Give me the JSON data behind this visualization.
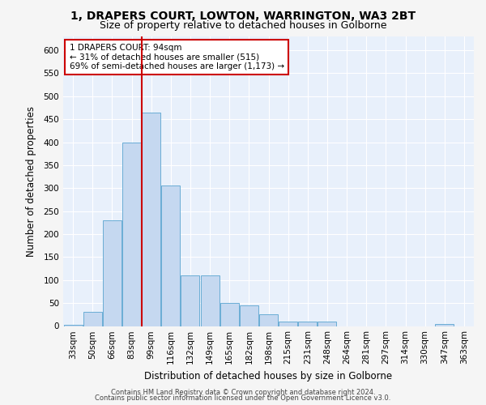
{
  "title_line1": "1, DRAPERS COURT, LOWTON, WARRINGTON, WA3 2BT",
  "title_line2": "Size of property relative to detached houses in Golborne",
  "xlabel": "Distribution of detached houses by size in Golborne",
  "ylabel": "Number of detached properties",
  "categories": [
    "33sqm",
    "50sqm",
    "66sqm",
    "83sqm",
    "99sqm",
    "116sqm",
    "132sqm",
    "149sqm",
    "165sqm",
    "182sqm",
    "198sqm",
    "215sqm",
    "231sqm",
    "248sqm",
    "264sqm",
    "281sqm",
    "297sqm",
    "314sqm",
    "330sqm",
    "347sqm",
    "363sqm"
  ],
  "values": [
    2,
    30,
    230,
    400,
    465,
    305,
    110,
    110,
    50,
    45,
    25,
    10,
    10,
    10,
    0,
    0,
    0,
    0,
    0,
    5,
    0
  ],
  "bar_color": "#c5d8f0",
  "bar_edge_color": "#6aadd5",
  "vline_color": "#cc0000",
  "vline_pos": 3.5,
  "annotation_text": "1 DRAPERS COURT: 94sqm\n← 31% of detached houses are smaller (515)\n69% of semi-detached houses are larger (1,173) →",
  "annotation_box_facecolor": "#ffffff",
  "annotation_box_edgecolor": "#cc0000",
  "footer_line1": "Contains HM Land Registry data © Crown copyright and database right 2024.",
  "footer_line2": "Contains public sector information licensed under the Open Government Licence v3.0.",
  "ylim": [
    0,
    630
  ],
  "yticks": [
    0,
    50,
    100,
    150,
    200,
    250,
    300,
    350,
    400,
    450,
    500,
    550,
    600
  ],
  "bg_color": "#e8f0fb",
  "fig_color": "#f5f5f5",
  "grid_color": "#ffffff",
  "title_fontsize": 10,
  "subtitle_fontsize": 9,
  "tick_fontsize": 7.5,
  "axis_label_fontsize": 8.5,
  "annotation_fontsize": 7.5,
  "footer_fontsize": 6.0
}
